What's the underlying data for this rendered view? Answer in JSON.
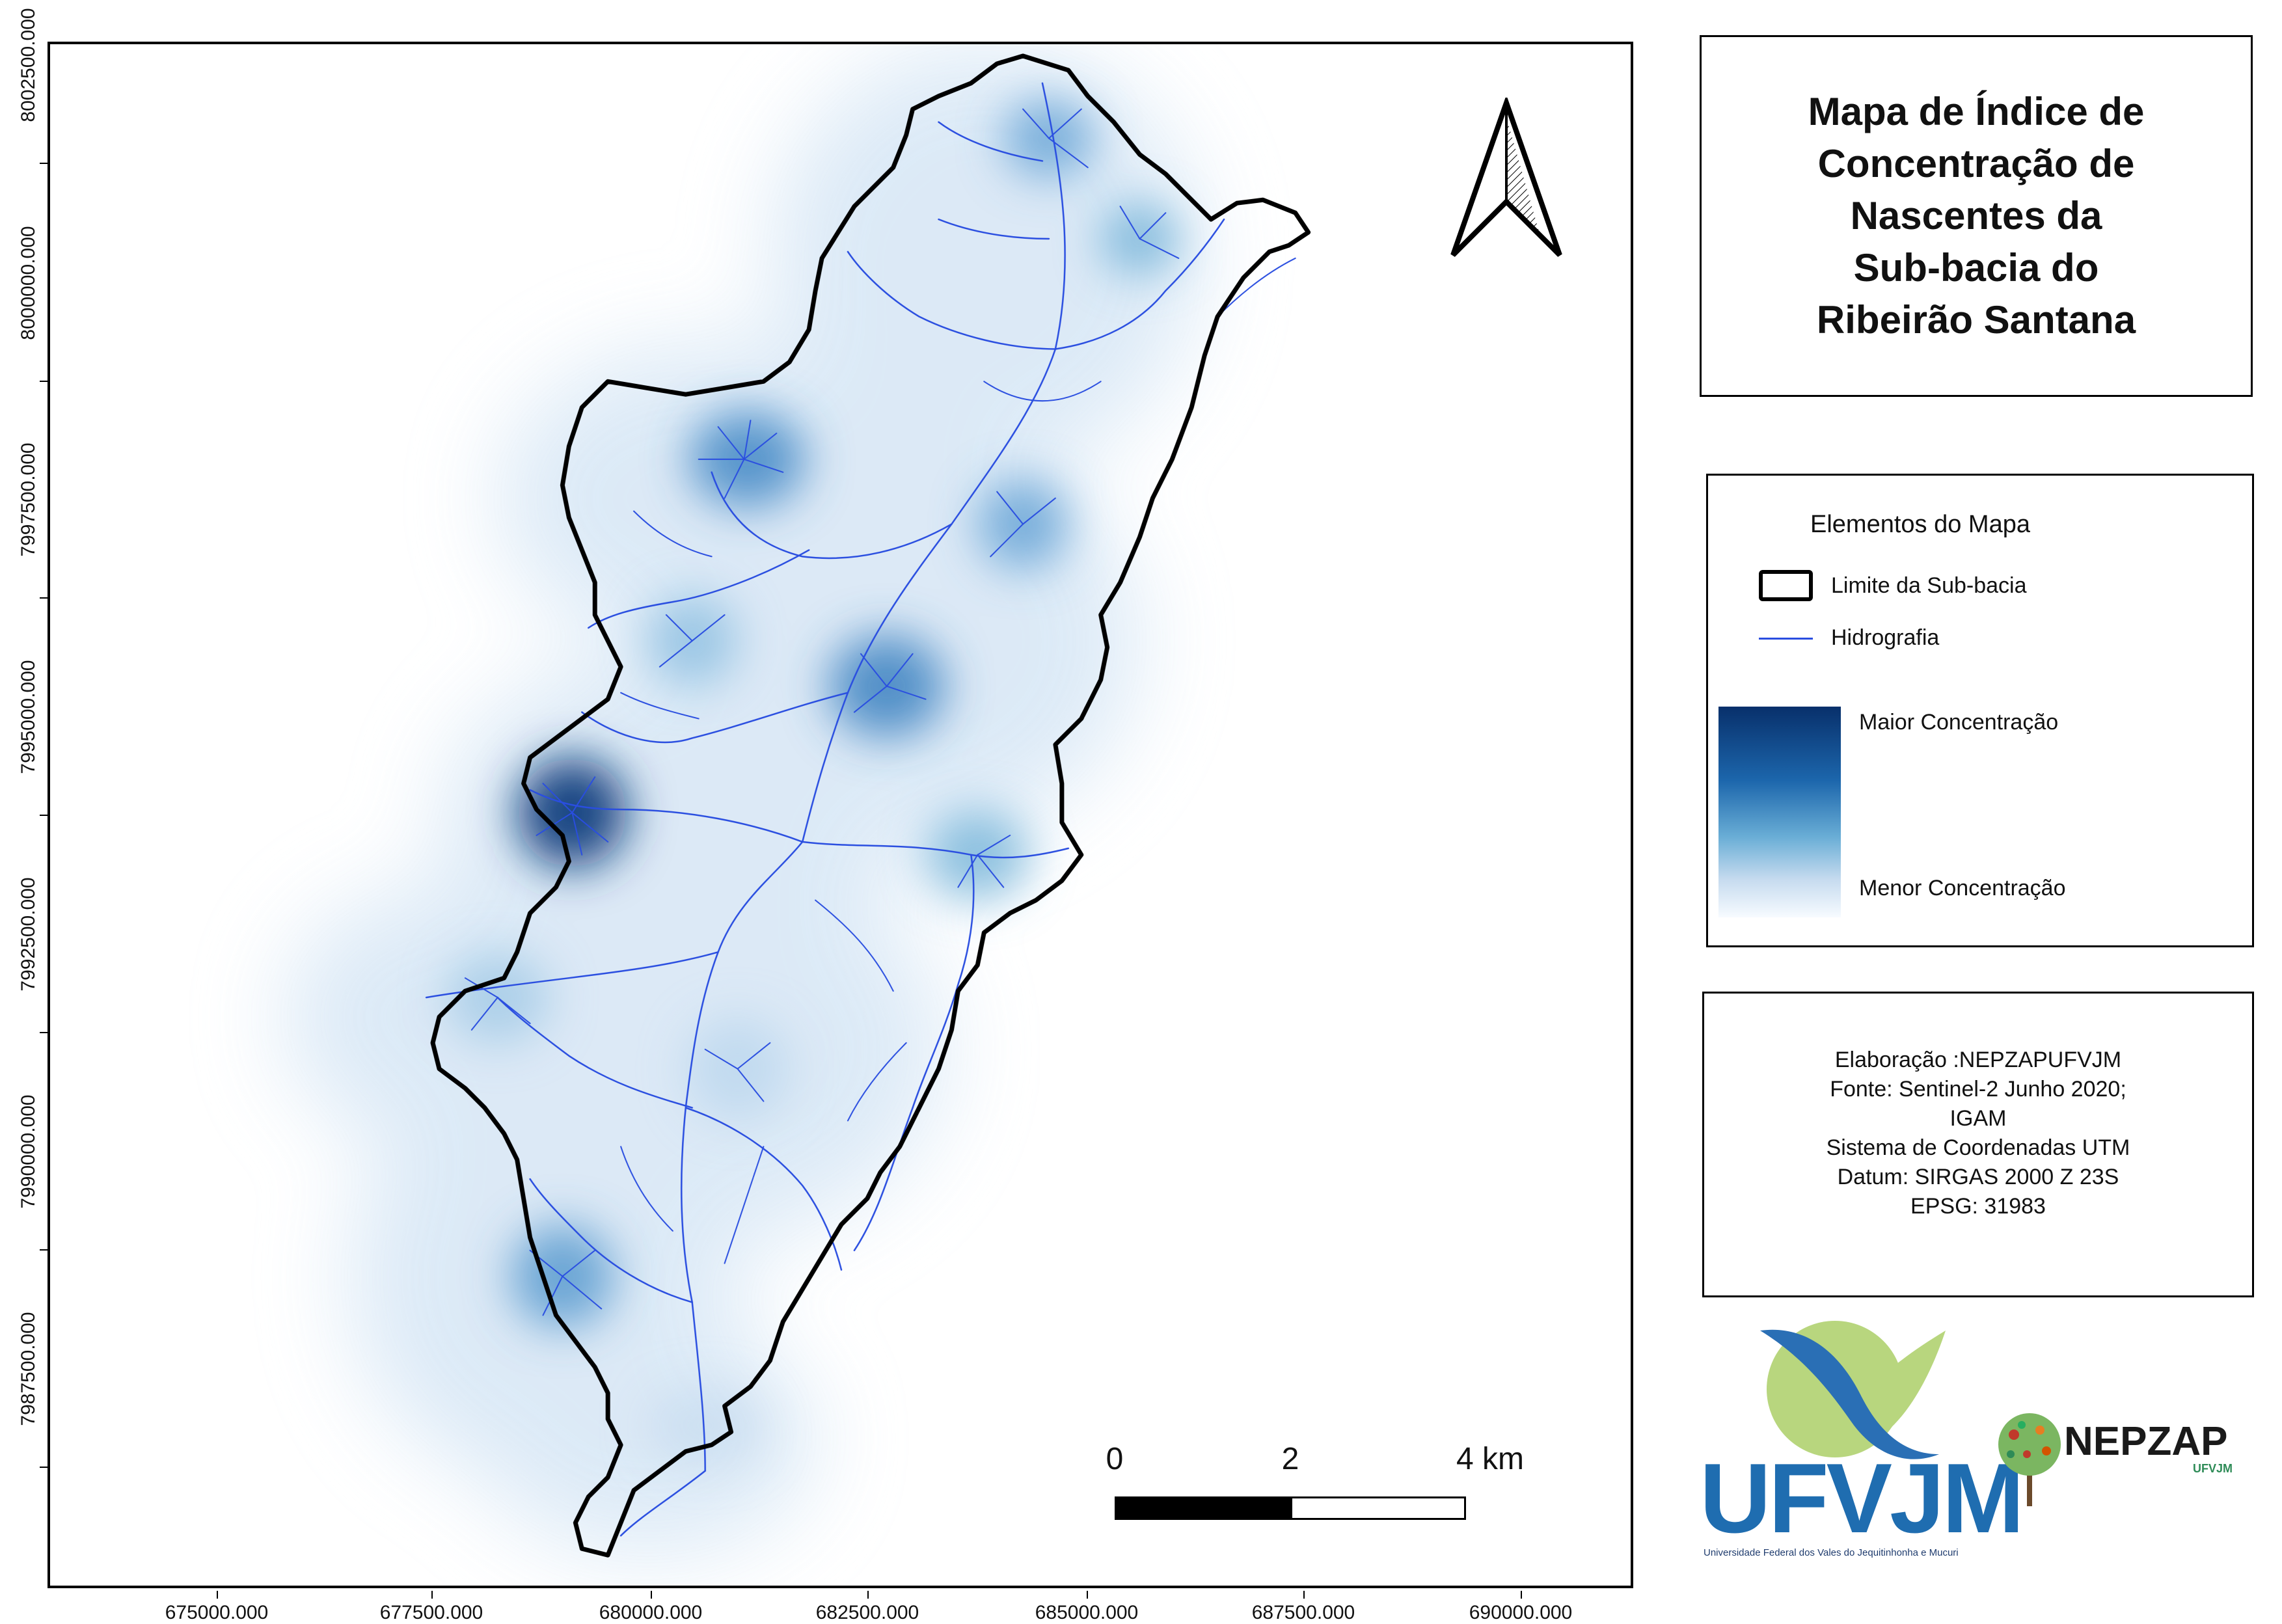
{
  "title": "Mapa de Índice de Concentração de Nascentes da Sub-bacia do Ribeirão Santana",
  "title_lines": [
    "Mapa de Índice de",
    "Concentração de",
    "Nascentes da",
    "Sub-bacia do",
    "Ribeirão Santana"
  ],
  "legend": {
    "title": "Elementos do Mapa",
    "boundary_label": "Limite da Sub-bacia",
    "hydro_label": "Hidrografia",
    "max_label": "Maior Concentração",
    "min_label": "Menor Concentração",
    "hydro_color": "#2a4ee0",
    "gradient_colors": [
      "#08306b",
      "#1c66ac",
      "#6aaed6",
      "#c6dbef",
      "#f7fbff"
    ]
  },
  "credits": [
    "Elaboração :NEPZAPUFVJM",
    "Fonte: Sentinel-2 Junho 2020;",
    "IGAM",
    "Sistema de Coordenadas UTM",
    "Datum: SIRGAS 2000 Z 23S",
    "EPSG: 31983"
  ],
  "x_axis": [
    "675000.000",
    "677500.000",
    "680000.000",
    "682500.000",
    "685000.000",
    "687500.000",
    "690000.000"
  ],
  "y_axis": [
    "8002500.000",
    "8000000.000",
    "7997500.000",
    "7995000.000",
    "7992500.000",
    "7990000.000",
    "7987500.000"
  ],
  "scale": {
    "labels": [
      "0",
      "2",
      "4 km"
    ]
  },
  "north_arrow": "north-arrow-icon",
  "logos": {
    "ufvjm": "UFVJM",
    "ufvjm_subtitle": "Universidade Federal dos Vales do Jequitinhonha e Mucuri",
    "nepzap": "NEPZAP",
    "nepzap_sub": "UFVJM"
  }
}
